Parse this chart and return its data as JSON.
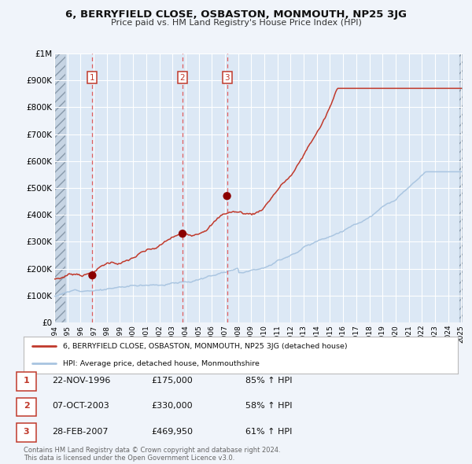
{
  "title": "6, BERRYFIELD CLOSE, OSBASTON, MONMOUTH, NP25 3JG",
  "subtitle": "Price paid vs. HM Land Registry's House Price Index (HPI)",
  "y_ticks": [
    0,
    100000,
    200000,
    300000,
    400000,
    500000,
    600000,
    700000,
    800000,
    900000,
    1000000
  ],
  "y_tick_labels": [
    "£0",
    "£100K",
    "£200K",
    "£300K",
    "£400K",
    "£500K",
    "£600K",
    "£700K",
    "£800K",
    "£900K",
    "£1M"
  ],
  "hpi_color": "#a8c4e0",
  "price_color": "#c0392b",
  "marker_color": "#8b0000",
  "sale_dates": [
    1996.9,
    2003.77,
    2007.16
  ],
  "sale_prices": [
    175000,
    330000,
    469950
  ],
  "sale_labels": [
    "1",
    "2",
    "3"
  ],
  "vline_color": "#e05050",
  "bg_color": "#f0f4fa",
  "plot_bg": "#dce8f5",
  "grid_color": "#c8d8ec",
  "legend_label_red": "6, BERRYFIELD CLOSE, OSBASTON, MONMOUTH, NP25 3JG (detached house)",
  "legend_label_blue": "HPI: Average price, detached house, Monmouthshire",
  "table_rows": [
    {
      "num": "1",
      "date": "22-NOV-1996",
      "price": "£175,000",
      "hpi": "85% ↑ HPI"
    },
    {
      "num": "2",
      "date": "07-OCT-2003",
      "price": "£330,000",
      "hpi": "58% ↑ HPI"
    },
    {
      "num": "3",
      "date": "28-FEB-2007",
      "price": "£469,950",
      "hpi": "61% ↑ HPI"
    }
  ],
  "footer": "Contains HM Land Registry data © Crown copyright and database right 2024.\nThis data is licensed under the Open Government Licence v3.0."
}
